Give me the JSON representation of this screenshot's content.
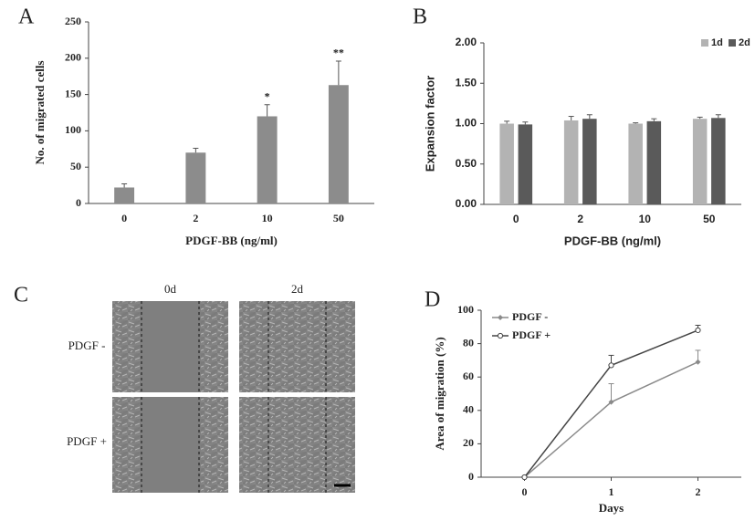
{
  "chart_data": [
    {
      "type": "bar",
      "panel": "A",
      "ylabel": "No. of migrated cells",
      "xlabel": "PDGF-BB (ng/ml)",
      "categories": [
        "0",
        "2",
        "10",
        "50"
      ],
      "series": [
        {
          "color": "#8c8c8c",
          "values": [
            22,
            70,
            120,
            163
          ],
          "errors": [
            5,
            6,
            16,
            33
          ]
        }
      ],
      "annotations": [
        null,
        null,
        "*",
        "**"
      ],
      "ylim": [
        0,
        250
      ],
      "yticks": [
        0,
        50,
        100,
        150,
        200,
        250
      ]
    },
    {
      "type": "bar",
      "panel": "B",
      "ylabel": "Expansion factor",
      "xlabel": "PDGF-BB (ng/ml)",
      "categories": [
        "0",
        "2",
        "10",
        "50"
      ],
      "series": [
        {
          "name": "1d",
          "color": "#b3b3b3",
          "values": [
            1.0,
            1.04,
            1.0,
            1.06
          ],
          "errors": [
            0.03,
            0.05,
            0.01,
            0.02
          ]
        },
        {
          "name": "2d",
          "color": "#5a5a5a",
          "values": [
            0.99,
            1.06,
            1.03,
            1.07
          ],
          "errors": [
            0.03,
            0.05,
            0.03,
            0.04
          ]
        }
      ],
      "legend": "top-right",
      "ylim": [
        0,
        2
      ],
      "yticks": [
        {
          "value": 0,
          "label": "0.00"
        },
        {
          "value": 0.5,
          "label": "0.50"
        },
        {
          "value": 1,
          "label": "1.00"
        },
        {
          "value": 1.5,
          "label": "1.50"
        },
        {
          "value": 2,
          "label": "2.00"
        }
      ]
    },
    {
      "type": "image",
      "panel": "C",
      "columns": [
        "0d",
        "2d"
      ],
      "rows": [
        "PDGF -",
        "PDGF +"
      ]
    },
    {
      "type": "line",
      "panel": "D",
      "ylabel": "Area of migration (%)",
      "xlabel": "Days",
      "x": [
        0,
        1,
        2
      ],
      "series": [
        {
          "name": "PDGF -",
          "color": "#8a8a8a",
          "marker": "diamond",
          "values": [
            0,
            45,
            69
          ],
          "errors": [
            0,
            11,
            7
          ]
        },
        {
          "name": "PDGF +",
          "color": "#454545",
          "marker": "circle",
          "values": [
            0,
            67,
            88
          ],
          "errors": [
            0,
            6,
            3
          ]
        }
      ],
      "legend": "top-left",
      "xlim": [
        -0.5,
        2.5
      ],
      "xticks": [
        0,
        1,
        2
      ],
      "ylim": [
        0,
        100
      ],
      "yticks": [
        0,
        20,
        40,
        60,
        80,
        100
      ]
    }
  ]
}
